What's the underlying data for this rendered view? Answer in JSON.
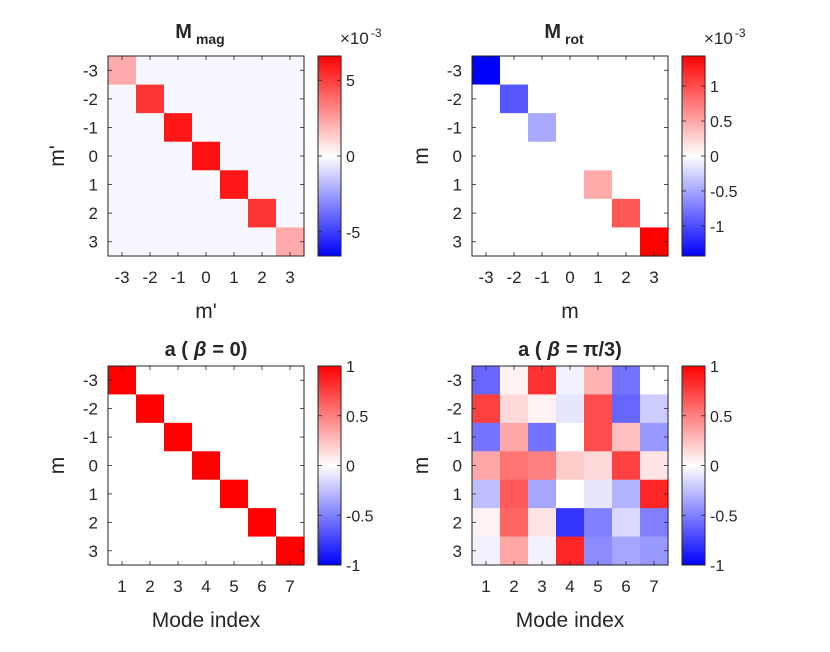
{
  "figure": {
    "background": "#ffffff"
  },
  "chart_data": [
    {
      "type": "heatmap",
      "id": "mag",
      "title_main": "M",
      "title_sub": "mag",
      "xlabel": "m'",
      "ylabel": "m'",
      "x_ticks": [
        "-3",
        "-2",
        "-1",
        "0",
        "1",
        "2",
        "3"
      ],
      "y_ticks": [
        "-3",
        "-2",
        "-1",
        "0",
        "1",
        "2",
        "3"
      ],
      "clim": [
        -0.0066,
        0.0066
      ],
      "background_value": -0.0002,
      "colorbar_ticks": [
        -5,
        0,
        5
      ],
      "colorbar_tick_labels": [
        "-5",
        "0",
        "5"
      ],
      "colorbar_multiplier_base": "×10",
      "colorbar_multiplier_exp": "-3",
      "diagonal_values": [
        0.0022,
        0.0052,
        0.006,
        0.0062,
        0.006,
        0.0052,
        0.0022
      ]
    },
    {
      "type": "heatmap",
      "id": "rot",
      "title_main": "M",
      "title_sub": "rot",
      "xlabel": "m",
      "ylabel": "m",
      "x_ticks": [
        "-3",
        "-2",
        "-1",
        "0",
        "1",
        "2",
        "3"
      ],
      "y_ticks": [
        "-3",
        "-2",
        "-1",
        "0",
        "1",
        "2",
        "3"
      ],
      "clim": [
        -0.00143,
        0.00143
      ],
      "background_value": 0,
      "colorbar_ticks": [
        -1,
        -0.5,
        0,
        0.5,
        1
      ],
      "colorbar_tick_labels": [
        "-1",
        "-0.5",
        "0",
        "0.5",
        "1"
      ],
      "colorbar_multiplier_base": "×10",
      "colorbar_multiplier_exp": "-3",
      "diagonal_values": [
        -0.00143,
        -0.00095,
        -0.00048,
        0,
        0.00048,
        0.00095,
        0.00143
      ]
    },
    {
      "type": "heatmap",
      "id": "a0",
      "title_prefix": "a (",
      "title_greek": "β",
      "title_suffix": "= 0)",
      "xlabel": "Mode index",
      "ylabel": "m",
      "x_ticks": [
        "1",
        "2",
        "3",
        "4",
        "5",
        "6",
        "7"
      ],
      "y_ticks": [
        "-3",
        "-2",
        "-1",
        "0",
        "1",
        "2",
        "3"
      ],
      "clim": [
        -1,
        1
      ],
      "colorbar_ticks": [
        -1,
        -0.5,
        0,
        0.5,
        1
      ],
      "colorbar_tick_labels": [
        "-1",
        "-0.5",
        "0",
        "0.5",
        "1"
      ],
      "rows": [
        [
          1,
          0,
          0,
          0,
          0,
          0,
          0
        ],
        [
          0,
          1,
          0,
          0,
          0,
          0,
          0
        ],
        [
          0,
          0,
          1,
          0,
          0,
          0,
          0
        ],
        [
          0,
          0,
          0,
          1,
          0,
          0,
          0
        ],
        [
          0,
          0,
          0,
          0,
          1,
          0,
          0
        ],
        [
          0,
          0,
          0,
          0,
          0,
          1,
          0
        ],
        [
          0,
          0,
          0,
          0,
          0,
          0,
          1
        ]
      ]
    },
    {
      "type": "heatmap",
      "id": "api3",
      "title_prefix": "a (",
      "title_greek": "β",
      "title_suffix": "=  π/3)",
      "xlabel": "Mode index",
      "ylabel": "m",
      "x_ticks": [
        "1",
        "2",
        "3",
        "4",
        "5",
        "6",
        "7"
      ],
      "y_ticks": [
        "-3",
        "-2",
        "-1",
        "0",
        "1",
        "2",
        "3"
      ],
      "clim": [
        -1,
        1
      ],
      "colorbar_ticks": [
        -1,
        -0.5,
        0,
        0.5,
        1
      ],
      "colorbar_tick_labels": [
        "-1",
        "-0.5",
        "0",
        "0.5",
        "1"
      ],
      "rows": [
        [
          -0.6,
          0.05,
          0.8,
          -0.05,
          0.3,
          -0.55,
          0.0
        ],
        [
          0.75,
          0.15,
          0.05,
          -0.1,
          0.7,
          -0.6,
          -0.2
        ],
        [
          -0.55,
          0.35,
          -0.55,
          0.0,
          0.7,
          0.25,
          -0.4
        ],
        [
          0.35,
          0.55,
          0.5,
          0.2,
          0.15,
          0.75,
          0.1
        ],
        [
          -0.25,
          0.65,
          -0.35,
          0.0,
          -0.1,
          -0.3,
          0.85
        ],
        [
          0.05,
          0.6,
          0.1,
          -0.8,
          -0.5,
          -0.15,
          -0.5
        ],
        [
          -0.05,
          0.35,
          -0.05,
          0.85,
          -0.45,
          -0.35,
          -0.4
        ]
      ]
    }
  ]
}
